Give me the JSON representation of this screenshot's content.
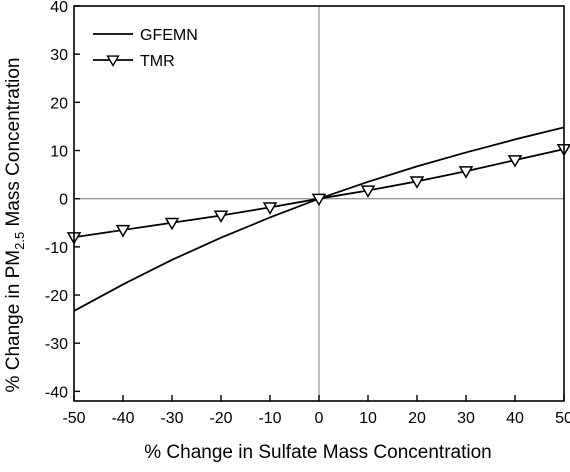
{
  "chart_data": {
    "type": "line",
    "title": "",
    "xlabel": "% Change in Sulfate Mass Concentration",
    "ylabel": {
      "prefix": "% Change in PM",
      "subscript": "2.5",
      "suffix": " Mass Concentration"
    },
    "xlim": [
      -50,
      50
    ],
    "ylim": [
      -42,
      40
    ],
    "xticks": [
      -50,
      -40,
      -30,
      -20,
      -10,
      0,
      10,
      20,
      30,
      40,
      50
    ],
    "yticks": [
      -40,
      -30,
      -20,
      -10,
      0,
      10,
      20,
      30,
      40
    ],
    "reference_lines": {
      "x": 0,
      "y": 0,
      "color": "#9a9a9a"
    },
    "grid": false,
    "legend_position": "top-left",
    "series": [
      {
        "name": "GFEMN",
        "style": "line",
        "color": "#000000",
        "x": [
          -50,
          -40,
          -30,
          -20,
          -10,
          0,
          10,
          20,
          30,
          40,
          50
        ],
        "y": [
          -23.3,
          -17.8,
          -12.7,
          -8.1,
          -3.9,
          0,
          3.5,
          6.7,
          9.6,
          12.3,
          14.8
        ]
      },
      {
        "name": "TMR",
        "style": "line-marker",
        "marker": "triangle-down",
        "color": "#000000",
        "x": [
          -50,
          -40,
          -30,
          -20,
          -10,
          0,
          10,
          20,
          30,
          40,
          50
        ],
        "y": [
          -8.0,
          -6.5,
          -5.0,
          -3.5,
          -1.8,
          0,
          1.7,
          3.6,
          5.7,
          8.0,
          10.3
        ]
      }
    ]
  }
}
